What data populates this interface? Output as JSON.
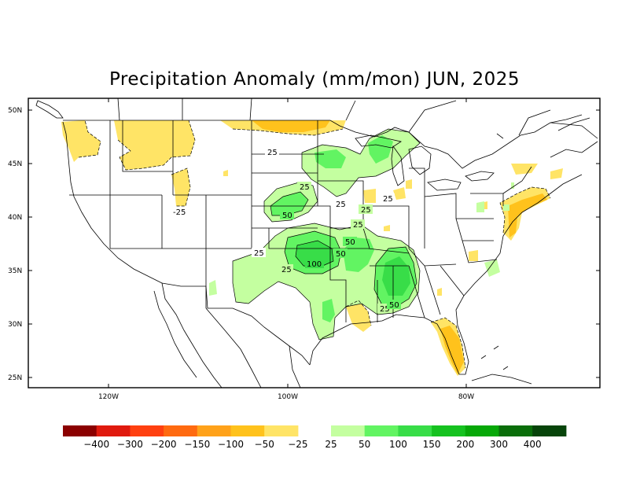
{
  "title": "Precipitation Anomaly (mm/mon) JUN, 2025",
  "map": {
    "lat_ticks": [
      "50N",
      "45N",
      "40N",
      "35N",
      "30N",
      "25N"
    ],
    "lon_ticks": [
      "120W",
      "100W",
      "80W"
    ]
  },
  "contour_labels": [
    "25",
    "25",
    "-25",
    "50",
    "25",
    "25",
    "25",
    "25",
    "50",
    "50",
    "25",
    "100",
    "25",
    "25",
    "50"
  ],
  "legend": {
    "labels": [
      "−400",
      "−300",
      "−200",
      "−150",
      "−100",
      "−50",
      "−25",
      "25",
      "50",
      "100",
      "150",
      "200",
      "300",
      "400"
    ],
    "colors_dry": [
      "#8b0000",
      "#e01a0e",
      "#ff4010",
      "#ff6a10",
      "#ffa21a",
      "#ffc21c",
      "#ffe466"
    ],
    "colors_wet": [
      "#c4ffa0",
      "#62f462",
      "#38dd48",
      "#16c220",
      "#07a808",
      "#0a6e0a",
      "#07440a"
    ]
  },
  "colors": {
    "dry_light": "#ffe466",
    "dry_mid": "#ffc21c",
    "dry_strong": "#ffa21a",
    "wet_light": "#c4ffa0",
    "wet_mid": "#62f462",
    "wet_strong": "#38dd48"
  }
}
